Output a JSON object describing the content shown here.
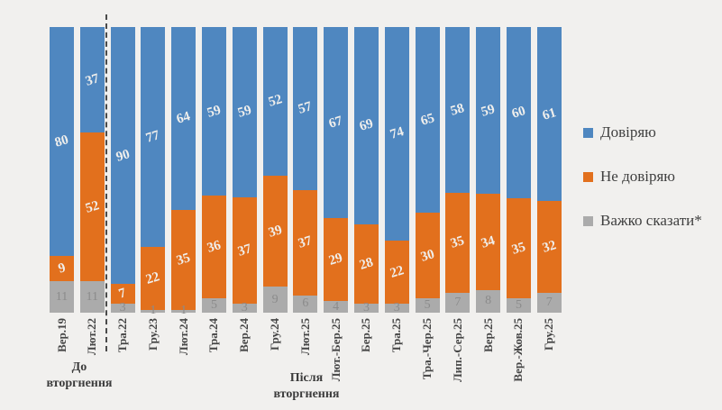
{
  "colors": {
    "background": "#f1f0ee",
    "trust": "#4f87c0",
    "distrust": "#e2701d",
    "hard_to_say": "#ababab",
    "divider": "#4a4a4a"
  },
  "chart_data": {
    "type": "bar",
    "stacked": true,
    "normalized_to_100": true,
    "unit": "%",
    "grid": false,
    "legend_position": "right",
    "categories": [
      "Вер.19",
      "Лют.22",
      "Тра.22",
      "Гру.23",
      "Лют.24",
      "Тра.24",
      "Вер.24",
      "Гру.24",
      "Лют.25",
      "Лют.-Бер.25",
      "Бер.25",
      "Тра.25",
      "Тра.-Чер.25",
      "Лип.-Сер.25",
      "Вер.25",
      "Вер.-Жов.25",
      "Гру.25"
    ],
    "series": [
      {
        "name": "Довіряю",
        "color": "#4f87c0",
        "values": [
          80,
          37,
          90,
          77,
          64,
          59,
          59,
          52,
          57,
          67,
          69,
          74,
          65,
          58,
          59,
          60,
          61
        ]
      },
      {
        "name": "Не довіряю",
        "color": "#e2701d",
        "values": [
          9,
          52,
          7,
          22,
          35,
          36,
          37,
          39,
          37,
          29,
          28,
          22,
          30,
          35,
          34,
          35,
          32
        ]
      },
      {
        "name": "Важко сказати*",
        "color": "#ababab",
        "values": [
          11,
          11,
          3,
          1,
          1,
          5,
          3,
          9,
          6,
          4,
          3,
          3,
          5,
          7,
          8,
          5,
          7
        ]
      }
    ],
    "annotations": {
      "divider_after_category": "Лют.22",
      "before": {
        "line1": "До",
        "line2": "вторгнення"
      },
      "after": {
        "line1": "Після",
        "line2": "вторгнення"
      }
    }
  }
}
